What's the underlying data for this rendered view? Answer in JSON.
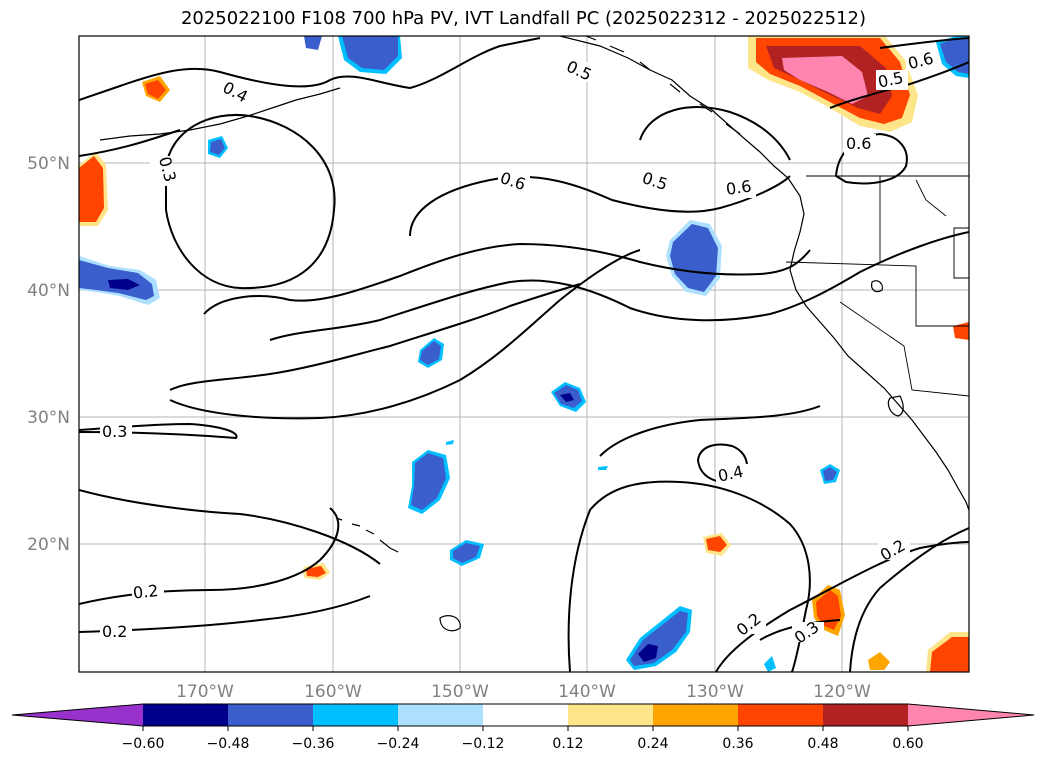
{
  "title": "2025022100 F108 700 hPa PV, IVT Landfall PC (2025022312 - 2025022512)",
  "lat_labels": [
    "50°N",
    "40°N",
    "30°N",
    "20°N"
  ],
  "lon_labels": [
    "170°W",
    "160°W",
    "150°W",
    "140°W",
    "130°W",
    "120°W"
  ],
  "contour_labels": [
    "0.4",
    "0.5",
    "0.6",
    "0.5",
    "0.6",
    "0.5",
    "0.6",
    "0.6",
    "0.3",
    "0.3",
    "0.4",
    "0.2",
    "0.2",
    "0.2",
    "0.3",
    "0.2"
  ],
  "colorbar": {
    "ticks": [
      "−0.60",
      "−0.48",
      "−0.36",
      "−0.24",
      "−0.12",
      "0.12",
      "0.24",
      "0.36",
      "0.48",
      "0.60"
    ],
    "colors": [
      "#9932CC",
      "#00008B",
      "#3A5FCD",
      "#00BFFF",
      "#ADE0FF",
      "#FFFFFF",
      "#FFE58A",
      "#FFA500",
      "#FF4500",
      "#B22222",
      "#FF85B0"
    ]
  },
  "colors": {
    "contour": "#000000",
    "grid": "#b0b0b0",
    "axis_label": "#808080"
  }
}
